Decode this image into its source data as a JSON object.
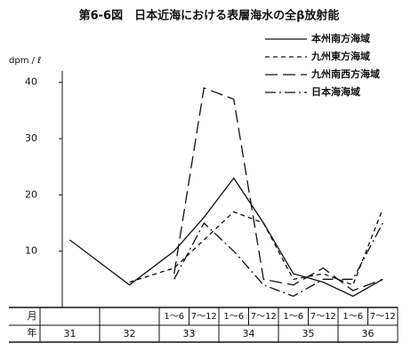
{
  "chart_data": {
    "type": "line",
    "title": "第6-6図　日本近海における表層海水の全β放射能",
    "y_label": "dpm / ℓ",
    "month_label": "月",
    "year_label": "年",
    "years": [
      "31",
      "32",
      "33",
      "34",
      "35",
      "36"
    ],
    "categories": [
      null,
      null,
      "1～6",
      "7～12",
      "1～6",
      "7～12",
      "1～6",
      "7～12",
      "1～6",
      "7～12"
    ],
    "ylim": [
      0,
      42
    ],
    "yticks": [
      10,
      20,
      30,
      40
    ],
    "legend": "upper right",
    "series": [
      {
        "name": "本州南方海域",
        "color": "#111111",
        "style": "solid",
        "values": [
          12,
          4,
          10,
          16,
          23,
          15,
          6,
          4.5,
          2,
          5
        ]
      },
      {
        "name": "九州東方海域",
        "color": "#111111",
        "style": "dashed",
        "values": [
          null,
          4.5,
          7,
          12,
          17,
          15,
          5,
          6,
          4,
          17.5
        ]
      },
      {
        "name": "九州南西方海域",
        "color": "#111111",
        "style": "longdash",
        "values": [
          null,
          null,
          6,
          39,
          37,
          5,
          4,
          7,
          3,
          5
        ]
      },
      {
        "name": "日本海海域",
        "color": "#111111",
        "style": "dashdot",
        "values": [
          null,
          null,
          5,
          15,
          10,
          4,
          2,
          5,
          5,
          15
        ]
      }
    ]
  }
}
